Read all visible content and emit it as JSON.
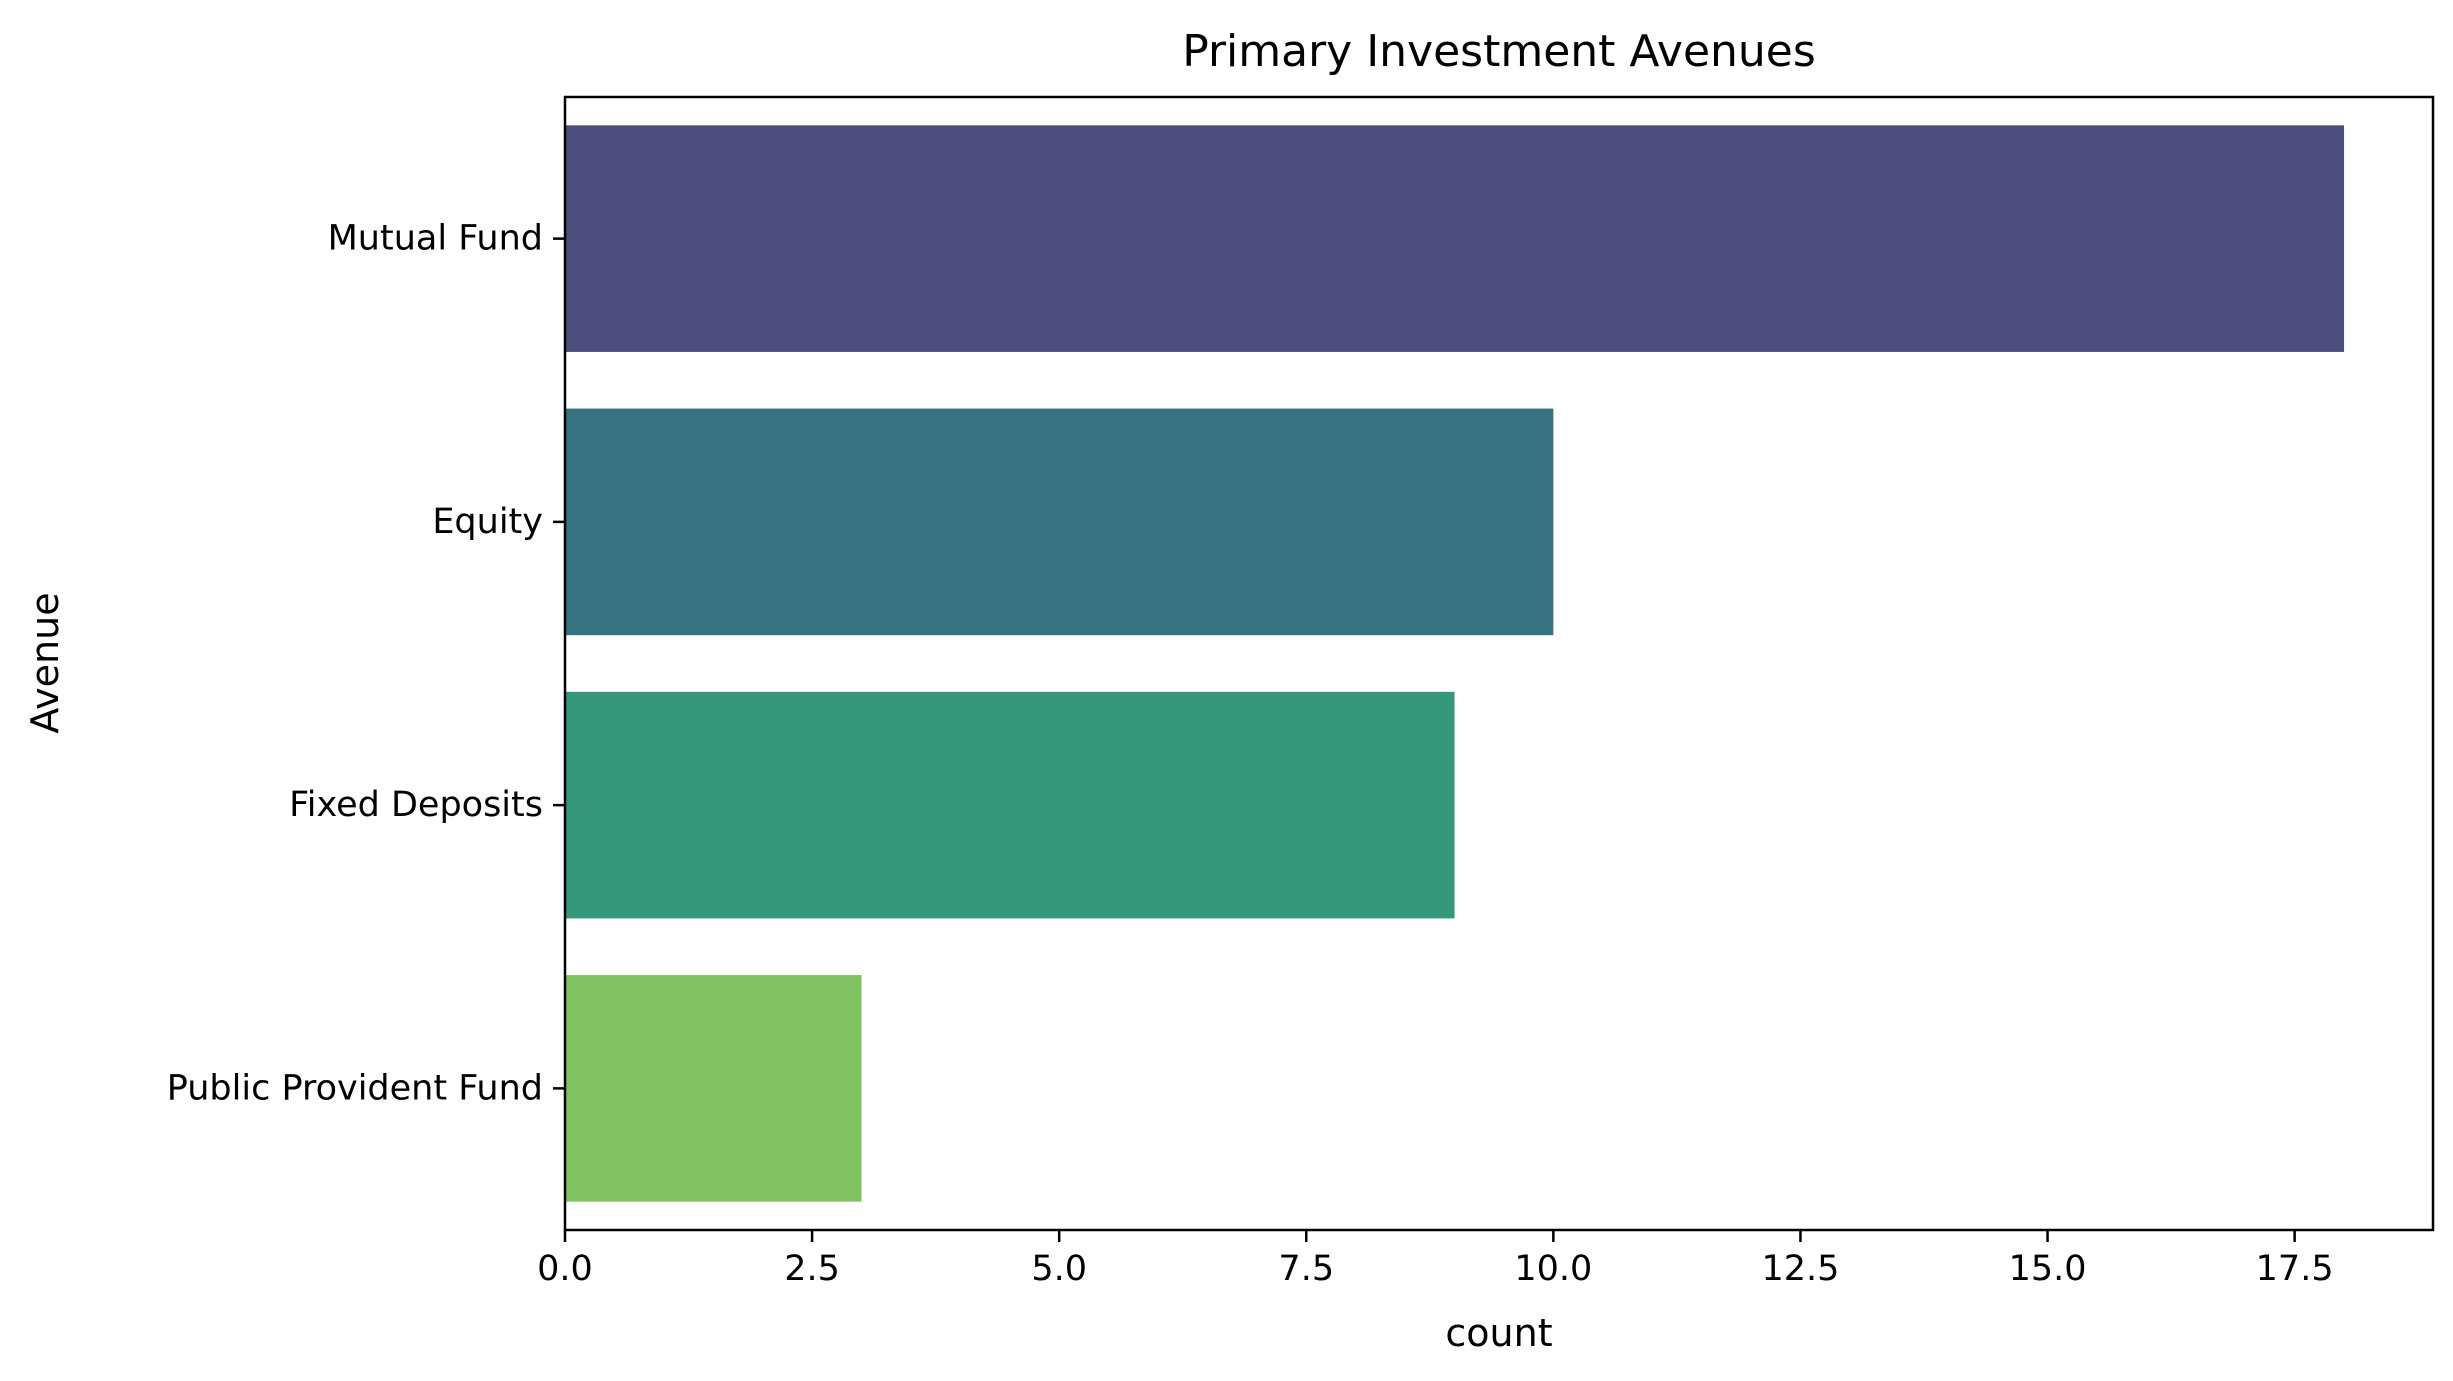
{
  "chart_data": {
    "type": "bar",
    "orientation": "horizontal",
    "title": "Primary Investment Avenues",
    "xlabel": "count",
    "ylabel": "Avenue",
    "categories": [
      "Mutual Fund",
      "Equity",
      "Fixed Deposits",
      "Public Provident Fund"
    ],
    "values": [
      18,
      10,
      9,
      3
    ],
    "colors": [
      "#4a4e7d",
      "#36727f",
      "#35987b",
      "#80c261"
    ],
    "xlim": [
      0,
      18.9
    ],
    "xticks": [
      0,
      2.5,
      5,
      7.5,
      10,
      12.5,
      15,
      17.5
    ],
    "xtick_labels": [
      "0.0",
      "2.5",
      "5.0",
      "7.5",
      "10.0",
      "12.5",
      "15.0",
      "17.5"
    ],
    "grid": false,
    "legend": null
  }
}
